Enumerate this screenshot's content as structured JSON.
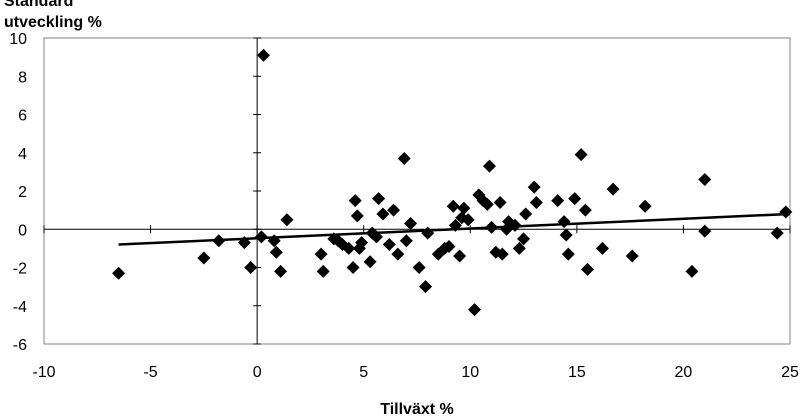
{
  "chart_data": {
    "type": "scatter",
    "title": "",
    "ylabel_lines": [
      "Standard",
      "utveckling %"
    ],
    "xlabel": "Tillväxt %",
    "xlim": [
      -10,
      25
    ],
    "ylim": [
      -6,
      10
    ],
    "x_ticks": [
      -10,
      -5,
      0,
      5,
      10,
      15,
      20,
      25
    ],
    "y_ticks": [
      -6,
      -4,
      -2,
      0,
      2,
      4,
      6,
      8,
      10
    ],
    "grid": false,
    "legend": "none",
    "marker": "diamond",
    "marker_color": "#000000",
    "trendline": {
      "x": [
        -6.5,
        25
      ],
      "y": [
        -0.8,
        0.8
      ]
    },
    "points": [
      {
        "x": -6.5,
        "y": -2.3
      },
      {
        "x": -2.5,
        "y": -1.5
      },
      {
        "x": -1.8,
        "y": -0.6
      },
      {
        "x": -0.6,
        "y": -0.7
      },
      {
        "x": -0.3,
        "y": -2.0
      },
      {
        "x": 0.2,
        "y": -0.4
      },
      {
        "x": 0.3,
        "y": 9.1
      },
      {
        "x": 0.8,
        "y": -0.6
      },
      {
        "x": 0.9,
        "y": -1.2
      },
      {
        "x": 1.1,
        "y": -2.2
      },
      {
        "x": 1.4,
        "y": 0.5
      },
      {
        "x": 3.0,
        "y": -1.3
      },
      {
        "x": 3.1,
        "y": -2.2
      },
      {
        "x": 3.6,
        "y": -0.5
      },
      {
        "x": 3.8,
        "y": -0.6
      },
      {
        "x": 4.0,
        "y": -0.8
      },
      {
        "x": 4.3,
        "y": -1.0
      },
      {
        "x": 4.5,
        "y": -2.0
      },
      {
        "x": 4.6,
        "y": 1.5
      },
      {
        "x": 4.7,
        "y": 0.7
      },
      {
        "x": 4.8,
        "y": -1.0
      },
      {
        "x": 4.9,
        "y": -0.7
      },
      {
        "x": 5.3,
        "y": -1.7
      },
      {
        "x": 5.4,
        "y": -0.2
      },
      {
        "x": 5.6,
        "y": -0.4
      },
      {
        "x": 5.7,
        "y": 1.6
      },
      {
        "x": 5.9,
        "y": 0.8
      },
      {
        "x": 6.2,
        "y": -0.8
      },
      {
        "x": 6.4,
        "y": 1.0
      },
      {
        "x": 6.6,
        "y": -1.3
      },
      {
        "x": 6.9,
        "y": 3.7
      },
      {
        "x": 7.0,
        "y": -0.6
      },
      {
        "x": 7.2,
        "y": 0.3
      },
      {
        "x": 7.6,
        "y": -2.0
      },
      {
        "x": 7.9,
        "y": -3.0
      },
      {
        "x": 8.0,
        "y": -0.2
      },
      {
        "x": 8.5,
        "y": -1.3
      },
      {
        "x": 8.8,
        "y": -1.0
      },
      {
        "x": 9.0,
        "y": -0.9
      },
      {
        "x": 9.2,
        "y": 1.2
      },
      {
        "x": 9.3,
        "y": 0.2
      },
      {
        "x": 9.5,
        "y": -1.4
      },
      {
        "x": 9.6,
        "y": 0.6
      },
      {
        "x": 9.7,
        "y": 1.1
      },
      {
        "x": 9.9,
        "y": 0.5
      },
      {
        "x": 10.2,
        "y": -4.2
      },
      {
        "x": 10.4,
        "y": 1.8
      },
      {
        "x": 10.6,
        "y": 1.5
      },
      {
        "x": 10.8,
        "y": 1.3
      },
      {
        "x": 10.9,
        "y": 3.3
      },
      {
        "x": 11.0,
        "y": 0.1
      },
      {
        "x": 11.2,
        "y": -1.2
      },
      {
        "x": 11.4,
        "y": 1.4
      },
      {
        "x": 11.5,
        "y": -1.3
      },
      {
        "x": 11.7,
        "y": 0.0
      },
      {
        "x": 11.8,
        "y": 0.4
      },
      {
        "x": 12.1,
        "y": 0.2
      },
      {
        "x": 12.3,
        "y": -1.0
      },
      {
        "x": 12.5,
        "y": -0.5
      },
      {
        "x": 12.6,
        "y": 0.8
      },
      {
        "x": 13.0,
        "y": 2.2
      },
      {
        "x": 13.1,
        "y": 1.4
      },
      {
        "x": 14.1,
        "y": 1.5
      },
      {
        "x": 14.4,
        "y": 0.4
      },
      {
        "x": 14.5,
        "y": -0.3
      },
      {
        "x": 14.6,
        "y": -1.3
      },
      {
        "x": 14.9,
        "y": 1.6
      },
      {
        "x": 15.2,
        "y": 3.9
      },
      {
        "x": 15.4,
        "y": 1.0
      },
      {
        "x": 15.5,
        "y": -2.1
      },
      {
        "x": 16.2,
        "y": -1.0
      },
      {
        "x": 16.7,
        "y": 2.1
      },
      {
        "x": 17.6,
        "y": -1.4
      },
      {
        "x": 18.2,
        "y": 1.2
      },
      {
        "x": 20.4,
        "y": -2.2
      },
      {
        "x": 21.0,
        "y": 2.6
      },
      {
        "x": 21.0,
        "y": -0.1
      },
      {
        "x": 24.4,
        "y": -0.2
      },
      {
        "x": 24.8,
        "y": 0.9
      }
    ]
  }
}
